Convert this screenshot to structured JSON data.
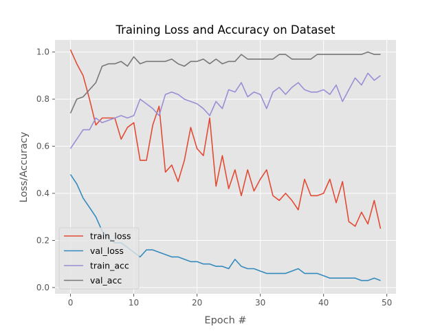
{
  "chart_data": {
    "type": "line",
    "title": "Training Loss and Accuracy on Dataset",
    "xlabel": "Epoch #",
    "ylabel": "Loss/Accuracy",
    "xlim": [
      -2.45,
      51.45
    ],
    "ylim": [
      -0.0265,
      1.0515
    ],
    "xticks": [
      0,
      10,
      20,
      30,
      40,
      50
    ],
    "yticks": [
      0.0,
      0.2,
      0.4,
      0.6,
      0.8,
      1.0
    ],
    "xtick_labels": [
      "0",
      "10",
      "20",
      "30",
      "40",
      "50"
    ],
    "ytick_labels": [
      "0.0",
      "0.2",
      "0.4",
      "0.6",
      "0.8",
      "1.0"
    ],
    "grid": true,
    "legend_position": "lower-left",
    "background": "#e5e5e5",
    "x": [
      0,
      1,
      2,
      3,
      4,
      5,
      6,
      7,
      8,
      9,
      10,
      11,
      12,
      13,
      14,
      15,
      16,
      17,
      18,
      19,
      20,
      21,
      22,
      23,
      24,
      25,
      26,
      27,
      28,
      29,
      30,
      31,
      32,
      33,
      34,
      35,
      36,
      37,
      38,
      39,
      40,
      41,
      42,
      43,
      44,
      45,
      46,
      47,
      48,
      49
    ],
    "series": [
      {
        "name": "train_loss",
        "color": "#e24a33",
        "values": [
          1.01,
          0.95,
          0.9,
          0.8,
          0.69,
          0.72,
          0.72,
          0.72,
          0.63,
          0.68,
          0.7,
          0.54,
          0.54,
          0.69,
          0.77,
          0.49,
          0.52,
          0.45,
          0.54,
          0.68,
          0.59,
          0.56,
          0.72,
          0.43,
          0.56,
          0.42,
          0.5,
          0.39,
          0.5,
          0.41,
          0.46,
          0.5,
          0.39,
          0.37,
          0.4,
          0.37,
          0.33,
          0.46,
          0.39,
          0.39,
          0.4,
          0.46,
          0.36,
          0.45,
          0.28,
          0.26,
          0.32,
          0.27,
          0.37,
          0.25
        ]
      },
      {
        "name": "val_loss",
        "color": "#348abd",
        "values": [
          0.48,
          0.44,
          0.38,
          0.34,
          0.3,
          0.24,
          0.21,
          0.19,
          0.19,
          0.17,
          0.15,
          0.13,
          0.16,
          0.16,
          0.15,
          0.14,
          0.13,
          0.13,
          0.12,
          0.11,
          0.11,
          0.1,
          0.1,
          0.09,
          0.09,
          0.08,
          0.12,
          0.09,
          0.08,
          0.08,
          0.07,
          0.06,
          0.06,
          0.06,
          0.06,
          0.07,
          0.08,
          0.06,
          0.06,
          0.06,
          0.05,
          0.04,
          0.04,
          0.04,
          0.04,
          0.04,
          0.03,
          0.03,
          0.04,
          0.03
        ]
      },
      {
        "name": "train_acc",
        "color": "#988ed5",
        "values": [
          0.59,
          0.63,
          0.67,
          0.67,
          0.72,
          0.7,
          0.71,
          0.72,
          0.73,
          0.72,
          0.73,
          0.8,
          0.78,
          0.76,
          0.73,
          0.82,
          0.83,
          0.82,
          0.8,
          0.79,
          0.78,
          0.76,
          0.73,
          0.79,
          0.76,
          0.84,
          0.83,
          0.87,
          0.81,
          0.83,
          0.82,
          0.76,
          0.83,
          0.85,
          0.82,
          0.85,
          0.87,
          0.84,
          0.83,
          0.83,
          0.84,
          0.82,
          0.86,
          0.79,
          0.84,
          0.89,
          0.86,
          0.91,
          0.88,
          0.9
        ]
      },
      {
        "name": "val_acc",
        "color": "#777777",
        "values": [
          0.74,
          0.8,
          0.81,
          0.84,
          0.87,
          0.94,
          0.95,
          0.95,
          0.96,
          0.94,
          0.98,
          0.95,
          0.96,
          0.96,
          0.96,
          0.96,
          0.97,
          0.95,
          0.94,
          0.96,
          0.96,
          0.97,
          0.95,
          0.97,
          0.95,
          0.96,
          0.96,
          0.99,
          0.97,
          0.97,
          0.97,
          0.97,
          0.97,
          0.99,
          0.99,
          0.97,
          0.97,
          0.97,
          0.97,
          0.99,
          0.99,
          0.99,
          0.99,
          0.99,
          0.99,
          0.99,
          0.99,
          1.0,
          0.99,
          0.99
        ]
      }
    ]
  }
}
